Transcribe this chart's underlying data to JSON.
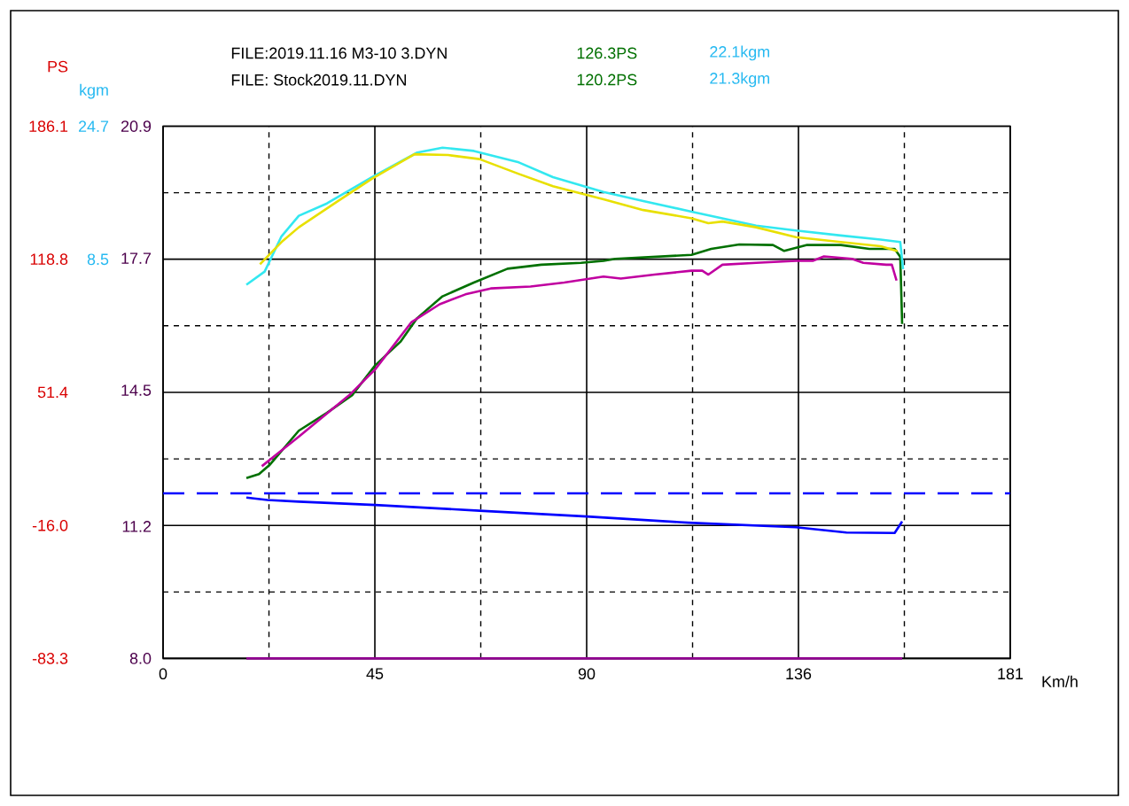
{
  "chart_data": {
    "type": "line",
    "xlabel": "Km/h",
    "ylabel": "PS",
    "y2label": "kgm",
    "xlim": [
      0,
      181
    ],
    "xticks": [
      0,
      {
        "value": 22.625,
        "label": null
      },
      {
        "value": 45.25,
        "label": "45"
      },
      {
        "value": 67.875,
        "label": null
      },
      {
        "value": 90.5,
        "label": "90"
      },
      {
        "value": 113.125,
        "label": null
      },
      {
        "value": 135.75,
        "label": "136"
      },
      {
        "value": 158.375,
        "label": null
      },
      181
    ],
    "ylim": [
      -83.3,
      186.1
    ],
    "yticks": [
      -83.3,
      {
        "value": -49.65,
        "label": null
      },
      {
        "value": -16.0,
        "label": "-16.0"
      },
      {
        "value": 17.7,
        "label": null
      },
      51.4,
      {
        "value": 85.1,
        "label": null
      },
      118.8,
      {
        "value": 152.45,
        "label": null
      },
      186.1
    ],
    "y2lim": [
      -40.1,
      24.7
    ],
    "y2ticks": [
      8.5,
      24.7
    ],
    "y3lim": [
      8.0,
      20.9
    ],
    "y3ticks": [
      {
        "value": 8.0,
        "label": "8.0"
      },
      11.2,
      14.5,
      17.7,
      20.9
    ],
    "grid": true,
    "annotations": [
      "FILE:2019.11.16  M3-10  3.DYN",
      "126.3PS",
      "22.1kgm",
      "FILE:  Stock2019.11.DYN",
      "120.2PS",
      "21.3kgm"
    ],
    "series": [
      {
        "color": "#33e8f0",
        "axis": "y2",
        "x": [
          17.8,
          21.7,
          25.3,
          29.0,
          35.0,
          44.6,
          54.3,
          59.7,
          66.4,
          76.0,
          83.3,
          94.1,
          102.6,
          112.9,
          126.7,
          135.2,
          144.8,
          153.3,
          157.5,
          158.1
        ],
        "values": [
          5.4,
          7.0,
          11.3,
          13.8,
          15.3,
          18.5,
          21.5,
          22.1,
          21.7,
          20.3,
          18.5,
          16.7,
          15.6,
          14.3,
          12.6,
          12.0,
          11.4,
          10.9,
          10.6,
          7.3
        ]
      },
      {
        "color": "#e8e000",
        "axis": "y2",
        "x": [
          20.7,
          25.3,
          29.0,
          37.4,
          44.6,
          53.7,
          60.9,
          67.6,
          76.0,
          83.3,
          94.1,
          102.6,
          112.9,
          116.5,
          119.5,
          126.7,
          135.2,
          144.8,
          153.3,
          156.9
        ],
        "values": [
          7.9,
          10.6,
          12.4,
          15.6,
          18.3,
          21.3,
          21.2,
          20.7,
          18.9,
          17.4,
          15.8,
          14.5,
          13.5,
          12.9,
          13.1,
          12.4,
          11.2,
          10.6,
          10.1,
          9.5
        ]
      },
      {
        "color": "#007000",
        "x": [
          17.8,
          20.5,
          22.9,
          29.0,
          35.0,
          40.4,
          45.3,
          50.7,
          54.3,
          59.7,
          66.4,
          73.6,
          80.8,
          89.3,
          94.1,
          96.6,
          112.9,
          117.1,
          123.1,
          130.3,
          132.7,
          137.6,
          144.8,
          150.9,
          156.3,
          157.5,
          157.9
        ],
        "values": [
          8,
          10,
          15,
          32,
          41,
          50,
          65,
          77,
          89,
          100,
          107,
          114,
          116,
          117,
          118,
          119,
          121,
          124,
          126.3,
          126,
          123,
          126,
          126,
          124,
          124,
          120,
          86
        ]
      },
      {
        "color": "#c000a0",
        "x": [
          21.1,
          29.0,
          39.8,
          45.3,
          53.1,
          59.1,
          64.6,
          70.0,
          78.5,
          85.7,
          94.1,
          97.8,
          105.0,
          112.9,
          115.2,
          116.5,
          119.5,
          126.7,
          135.2,
          138.8,
          141.2,
          147.2,
          149.6,
          154.5,
          155.7,
          156.7
        ],
        "values": [
          14,
          29,
          50,
          63,
          87,
          96,
          101,
          104,
          105,
          107,
          110,
          109,
          111,
          113,
          113,
          111,
          116,
          117,
          118,
          118,
          120.2,
          119,
          117,
          116,
          116,
          108
        ]
      },
      {
        "color": "#0000ff",
        "axis": "y3",
        "line_style": "dashed",
        "x": [
          0,
          181
        ],
        "values": [
          12.0,
          12.0
        ]
      },
      {
        "color": "#0000ff",
        "axis": "y3",
        "x": [
          17.8,
          22.3,
          29.0,
          45.3,
          67.6,
          90.5,
          112.2,
          135.2,
          146.0,
          156.3,
          157.9
        ],
        "values": [
          11.9,
          11.84,
          11.8,
          11.72,
          11.58,
          11.44,
          11.29,
          11.18,
          11.05,
          11.04,
          11.32
        ]
      },
      {
        "color": "#900090",
        "axis": "y3",
        "x": [
          17.8,
          157.9
        ],
        "values": [
          8.0,
          8.0
        ]
      }
    ]
  }
}
